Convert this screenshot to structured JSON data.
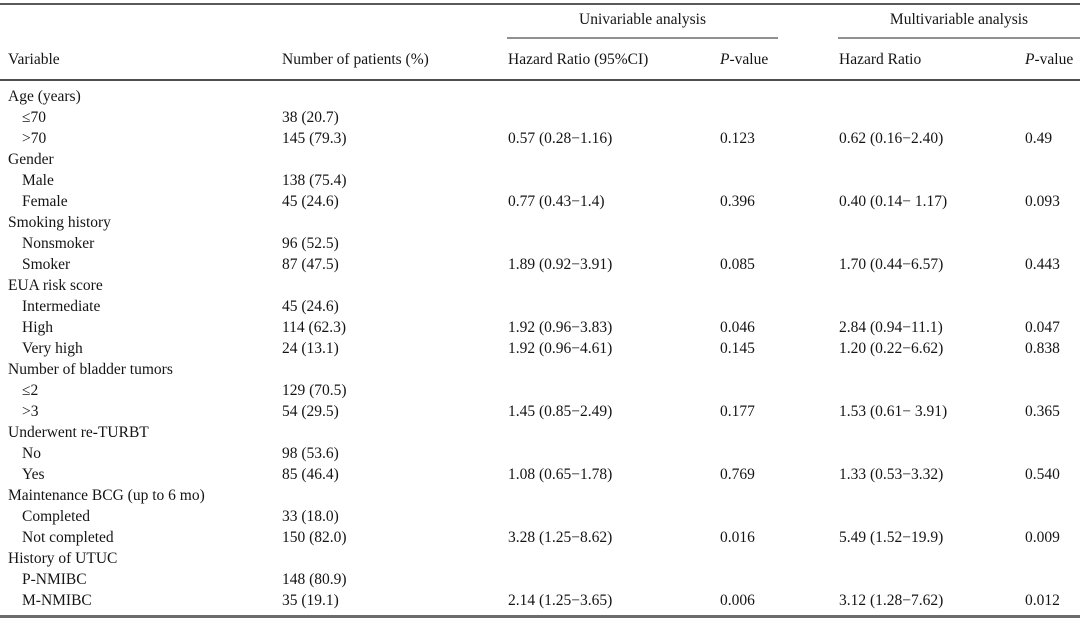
{
  "table": {
    "spanners": {
      "univariable": "Univariable analysis",
      "multivariable": "Multivariable analysis"
    },
    "columns": {
      "variable": "Variable",
      "n": "Number of patients (%)",
      "uni_hr": "Hazard Ratio (95%CI)",
      "uni_p": "P-value",
      "multi_hr": "Hazard Ratio",
      "multi_p": "P-value"
    },
    "rows": [
      {
        "variable": "Age (years)",
        "indent": false,
        "n": "",
        "uni_hr": "",
        "uni_p": "",
        "multi_hr": "",
        "multi_p": ""
      },
      {
        "variable": "≤70",
        "indent": true,
        "n": "38 (20.7)",
        "uni_hr": "",
        "uni_p": "",
        "multi_hr": "",
        "multi_p": ""
      },
      {
        "variable": ">70",
        "indent": true,
        "n": "145 (79.3)",
        "uni_hr": "0.57 (0.28−1.16)",
        "uni_p": "0.123",
        "multi_hr": "0.62 (0.16−2.40)",
        "multi_p": "0.49"
      },
      {
        "variable": "Gender",
        "indent": false,
        "n": "",
        "uni_hr": "",
        "uni_p": "",
        "multi_hr": "",
        "multi_p": ""
      },
      {
        "variable": "Male",
        "indent": true,
        "n": "138 (75.4)",
        "uni_hr": "",
        "uni_p": "",
        "multi_hr": "",
        "multi_p": ""
      },
      {
        "variable": "Female",
        "indent": true,
        "n": "45 (24.6)",
        "uni_hr": "0.77 (0.43−1.4)",
        "uni_p": "0.396",
        "multi_hr": "0.40 (0.14− 1.17)",
        "multi_p": "0.093"
      },
      {
        "variable": "Smoking history",
        "indent": false,
        "n": "",
        "uni_hr": "",
        "uni_p": "",
        "multi_hr": "",
        "multi_p": ""
      },
      {
        "variable": "Nonsmoker",
        "indent": true,
        "n": "96 (52.5)",
        "uni_hr": "",
        "uni_p": "",
        "multi_hr": "",
        "multi_p": ""
      },
      {
        "variable": "Smoker",
        "indent": true,
        "n": "87 (47.5)",
        "uni_hr": "1.89 (0.92−3.91)",
        "uni_p": "0.085",
        "multi_hr": "1.70 (0.44−6.57)",
        "multi_p": "0.443"
      },
      {
        "variable": "EUA risk score",
        "indent": false,
        "n": "",
        "uni_hr": "",
        "uni_p": "",
        "multi_hr": "",
        "multi_p": ""
      },
      {
        "variable": "Intermediate",
        "indent": true,
        "n": "45 (24.6)",
        "uni_hr": "",
        "uni_p": "",
        "multi_hr": "",
        "multi_p": ""
      },
      {
        "variable": "High",
        "indent": true,
        "n": "114 (62.3)",
        "uni_hr": "1.92 (0.96−3.83)",
        "uni_p": "0.046",
        "multi_hr": "2.84 (0.94−11.1)",
        "multi_p": "0.047"
      },
      {
        "variable": "Very high",
        "indent": true,
        "n": "24 (13.1)",
        "uni_hr": "1.92 (0.96−4.61)",
        "uni_p": "0.145",
        "multi_hr": "1.20 (0.22−6.62)",
        "multi_p": "0.838"
      },
      {
        "variable": "Number of bladder tumors",
        "indent": false,
        "n": "",
        "uni_hr": "",
        "uni_p": "",
        "multi_hr": "",
        "multi_p": ""
      },
      {
        "variable": "≤2",
        "indent": true,
        "n": "129 (70.5)",
        "uni_hr": "",
        "uni_p": "",
        "multi_hr": "",
        "multi_p": ""
      },
      {
        "variable": ">3",
        "indent": true,
        "n": "54 (29.5)",
        "uni_hr": "1.45 (0.85−2.49)",
        "uni_p": "0.177",
        "multi_hr": "1.53 (0.61− 3.91)",
        "multi_p": "0.365"
      },
      {
        "variable": "Underwent re-TURBT",
        "indent": false,
        "n": "",
        "uni_hr": "",
        "uni_p": "",
        "multi_hr": "",
        "multi_p": ""
      },
      {
        "variable": "No",
        "indent": true,
        "n": "98 (53.6)",
        "uni_hr": "",
        "uni_p": "",
        "multi_hr": "",
        "multi_p": ""
      },
      {
        "variable": "Yes",
        "indent": true,
        "n": "85 (46.4)",
        "uni_hr": "1.08 (0.65−1.78)",
        "uni_p": "0.769",
        "multi_hr": "1.33 (0.53−3.32)",
        "multi_p": "0.540"
      },
      {
        "variable": "Maintenance BCG (up to 6 mo)",
        "indent": false,
        "n": "",
        "uni_hr": "",
        "uni_p": "",
        "multi_hr": "",
        "multi_p": ""
      },
      {
        "variable": "Completed",
        "indent": true,
        "n": "33 (18.0)",
        "uni_hr": "",
        "uni_p": "",
        "multi_hr": "",
        "multi_p": ""
      },
      {
        "variable": "Not completed",
        "indent": true,
        "n": "150 (82.0)",
        "uni_hr": "3.28 (1.25−8.62)",
        "uni_p": "0.016",
        "multi_hr": "5.49 (1.52−19.9)",
        "multi_p": "0.009"
      },
      {
        "variable": "History of UTUC",
        "indent": false,
        "n": "",
        "uni_hr": "",
        "uni_p": "",
        "multi_hr": "",
        "multi_p": ""
      },
      {
        "variable": "P-NMIBC",
        "indent": true,
        "n": "148 (80.9)",
        "uni_hr": "",
        "uni_p": "",
        "multi_hr": "",
        "multi_p": ""
      },
      {
        "variable": "M-NMIBC",
        "indent": true,
        "n": "35 (19.1)",
        "uni_hr": "2.14 (1.25−3.65)",
        "uni_p": "0.006",
        "multi_hr": "3.12 (1.28−7.62)",
        "multi_p": "0.012"
      }
    ]
  }
}
